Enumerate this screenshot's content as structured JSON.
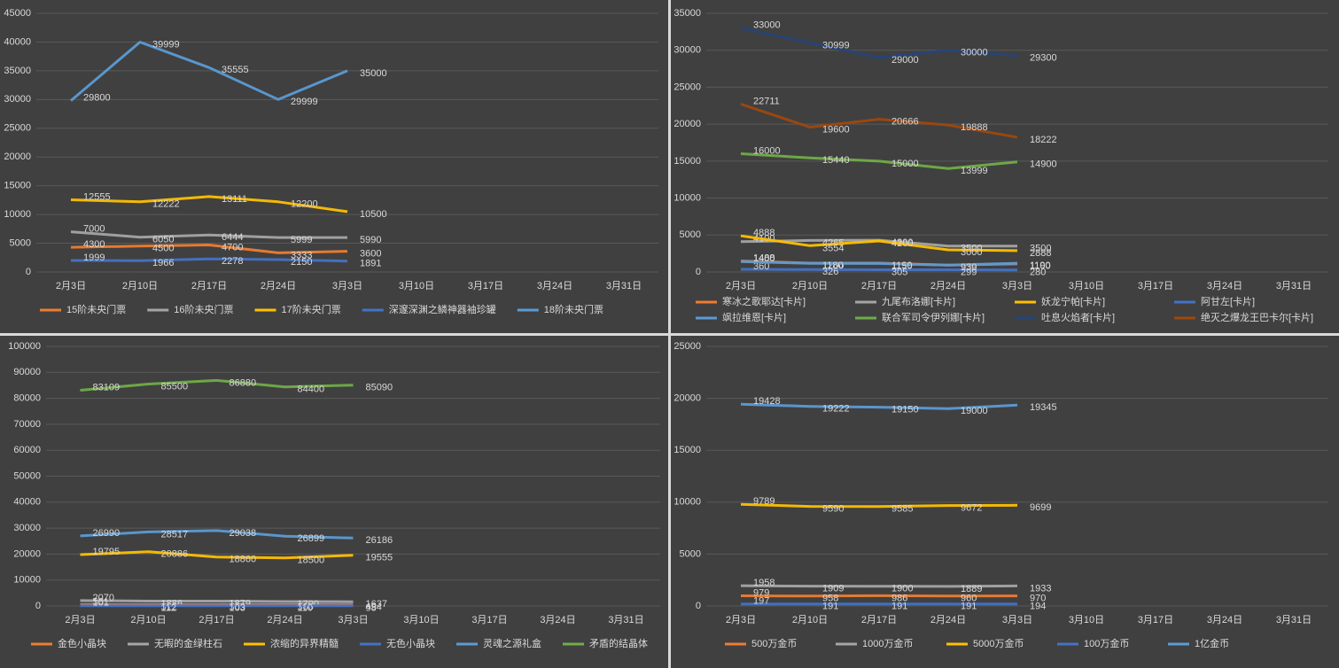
{
  "chart_data": [
    {
      "type": "line",
      "categories": [
        "2月3日",
        "2月10日",
        "2月17日",
        "2月24日",
        "3月3日",
        "3月10日",
        "3月17日",
        "3月24日",
        "3月31日"
      ],
      "ylim": [
        0,
        45000
      ],
      "yticks": [
        0,
        5000,
        10000,
        15000,
        20000,
        25000,
        30000,
        35000,
        40000,
        45000
      ],
      "grid": true,
      "legend": "bottom",
      "series": [
        {
          "name": "15阶未央门票",
          "color": "#ed7d31",
          "values": [
            4300,
            4500,
            4700,
            3333,
            3600,
            null,
            null,
            null,
            null
          ]
        },
        {
          "name": "16阶未央门票",
          "color": "#a5a5a5",
          "values": [
            7000,
            6050,
            6444,
            5999,
            5990,
            null,
            null,
            null,
            null
          ]
        },
        {
          "name": "17阶未央门票",
          "color": "#ffc000",
          "values": [
            12555,
            12222,
            13111,
            12200,
            10500,
            null,
            null,
            null,
            null
          ]
        },
        {
          "name": "深邃深渊之鳞神器袖珍罐",
          "color": "#4472c4",
          "values": [
            1999,
            1966,
            2278,
            2150,
            1891,
            null,
            null,
            null,
            null
          ]
        },
        {
          "name": "18阶未央门票",
          "color": "#5b9bd5",
          "values": [
            29800,
            39999,
            35555,
            29999,
            35000,
            null,
            null,
            null,
            null
          ]
        }
      ]
    },
    {
      "type": "line",
      "categories": [
        "2月3日",
        "2月10日",
        "2月17日",
        "2月24日",
        "3月3日",
        "3月10日",
        "3月17日",
        "3月24日",
        "3月31日"
      ],
      "ylim": [
        0,
        35000
      ],
      "yticks": [
        0,
        5000,
        10000,
        15000,
        20000,
        25000,
        30000,
        35000
      ],
      "grid": true,
      "legend": "bottom",
      "series": [
        {
          "name": "寒冰之歌耶达[卡片]",
          "color": "#ed7d31",
          "values": [
            1488,
            1200,
            1199,
            939,
            1100,
            null,
            null,
            null,
            null
          ]
        },
        {
          "name": "九尾布洛娜[卡片]",
          "color": "#a5a5a5",
          "values": [
            4100,
            4265,
            4300,
            3500,
            3500,
            null,
            null,
            null,
            null
          ]
        },
        {
          "name": "妖龙宁帕[卡片]",
          "color": "#ffc000",
          "values": [
            4888,
            3554,
            4200,
            3000,
            2888,
            null,
            null,
            null,
            null
          ]
        },
        {
          "name": "阿甘左[卡片]",
          "color": "#4472c4",
          "values": [
            360,
            326,
            305,
            299,
            280,
            null,
            null,
            null,
            null
          ]
        },
        {
          "name": "飒拉维恩[卡片]",
          "color": "#5b9bd5",
          "values": [
            1400,
            1180,
            1150,
            930,
            1190,
            null,
            null,
            null,
            null
          ]
        },
        {
          "name": "联合军司令伊列娜[卡片]",
          "color": "#70ad47",
          "values": [
            16000,
            15440,
            15000,
            13999,
            14900,
            null,
            null,
            null,
            null
          ]
        },
        {
          "name": "吐息火焰者[卡片]",
          "color": "#264478",
          "values": [
            33000,
            30999,
            29000,
            30000,
            29300,
            null,
            null,
            null,
            null
          ]
        },
        {
          "name": "绝灭之爆龙王巴卡尔[卡片]",
          "color": "#9e480e",
          "values": [
            22711,
            19600,
            20666,
            19888,
            18222,
            null,
            null,
            null,
            null
          ]
        }
      ]
    },
    {
      "type": "line",
      "categories": [
        "2月3日",
        "2月10日",
        "2月17日",
        "2月24日",
        "3月3日",
        "3月10日",
        "3月17日",
        "3月24日",
        "3月31日"
      ],
      "ylim": [
        0,
        100000
      ],
      "yticks": [
        0,
        10000,
        20000,
        30000,
        40000,
        50000,
        60000,
        70000,
        80000,
        90000,
        100000
      ],
      "grid": true,
      "legend": "bottom",
      "series": [
        {
          "name": "金色小晶块",
          "color": "#ed7d31",
          "values": [
            561,
            512,
            505,
            500,
            494,
            null,
            null,
            null,
            null
          ]
        },
        {
          "name": "无暇的金绿柱石",
          "color": "#a5a5a5",
          "values": [
            2070,
            1886,
            1879,
            1700,
            1637,
            null,
            null,
            null,
            null
          ]
        },
        {
          "name": "浓缩的异界精髓",
          "color": "#ffc000",
          "values": [
            19795,
            20886,
            18860,
            18500,
            19555,
            null,
            null,
            null,
            null
          ]
        },
        {
          "name": "无色小晶块",
          "color": "#4472c4",
          "values": [
            101,
            112,
            103,
            110,
            98,
            null,
            null,
            null,
            null
          ]
        },
        {
          "name": "灵魂之源礼盒",
          "color": "#5b9bd5",
          "values": [
            26990,
            28517,
            29038,
            26899,
            26186,
            null,
            null,
            null,
            null
          ]
        },
        {
          "name": "矛盾的结晶体",
          "color": "#70ad47",
          "values": [
            83109,
            85500,
            86880,
            84400,
            85090,
            null,
            null,
            null,
            null
          ]
        }
      ]
    },
    {
      "type": "line",
      "categories": [
        "2月3日",
        "2月10日",
        "2月17日",
        "2月24日",
        "3月3日",
        "3月10日",
        "3月17日",
        "3月24日",
        "3月31日"
      ],
      "ylim": [
        0,
        25000
      ],
      "yticks": [
        0,
        5000,
        10000,
        15000,
        20000,
        25000
      ],
      "grid": true,
      "legend": "bottom",
      "series": [
        {
          "name": "500万金币",
          "color": "#ed7d31",
          "values": [
            979,
            958,
            986,
            960,
            970,
            null,
            null,
            null,
            null
          ]
        },
        {
          "name": "1000万金币",
          "color": "#a5a5a5",
          "values": [
            1958,
            1909,
            1900,
            1889,
            1933,
            null,
            null,
            null,
            null
          ]
        },
        {
          "name": "5000万金币",
          "color": "#ffc000",
          "values": [
            9789,
            9590,
            9585,
            9672,
            9699,
            null,
            null,
            null,
            null
          ]
        },
        {
          "name": "100万金币",
          "color": "#4472c4",
          "values": [
            197,
            191,
            191,
            191,
            194,
            null,
            null,
            null,
            null
          ]
        },
        {
          "name": "1亿金币",
          "color": "#5b9bd5",
          "values": [
            19428,
            19222,
            19150,
            19000,
            19345,
            null,
            null,
            null,
            null
          ]
        }
      ]
    }
  ]
}
